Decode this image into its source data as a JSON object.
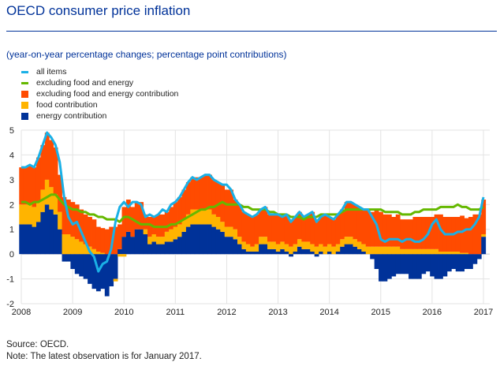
{
  "header": {
    "title": "OECD consumer price inflation",
    "subtitle": "(year-on-year percentage changes; percentage point contributions)"
  },
  "legend": [
    {
      "label": "all items",
      "type": "line",
      "color": "#1ab0e6"
    },
    {
      "label": "excluding food and energy",
      "type": "line",
      "color": "#65b800"
    },
    {
      "label": "excluding food and energy contribution",
      "type": "box",
      "color": "#ff4b00"
    },
    {
      "label": "food contribution",
      "type": "box",
      "color": "#ffb400"
    },
    {
      "label": "energy contribution",
      "type": "box",
      "color": "#003299"
    }
  ],
  "footer": {
    "source": "Source: OECD.",
    "note": "Note: The latest observation is for January 2017."
  },
  "chart_data": {
    "type": "bar",
    "title": "OECD consumer price inflation",
    "subtitle": "(year-on-year percentage changes; percentage point contributions)",
    "xlabel": "",
    "ylabel": "",
    "frequency": "monthly",
    "x_start": "2008-01",
    "x_end": "2017-01",
    "x_ticks": [
      "2008",
      "2009",
      "2010",
      "2011",
      "2012",
      "2013",
      "2014",
      "2015",
      "2016",
      "2017"
    ],
    "y_ticks": [
      -2,
      -1,
      0,
      1,
      2,
      3,
      4,
      5
    ],
    "ylim": [
      -2,
      5
    ],
    "grid": true,
    "legend_position": "top-left",
    "series": [
      {
        "name": "energy contribution",
        "type": "stacked-bar",
        "color": "#003299",
        "values": [
          1.2,
          1.2,
          1.2,
          1.1,
          1.3,
          1.7,
          2.0,
          1.8,
          1.6,
          1.0,
          -0.3,
          -0.3,
          -0.6,
          -0.8,
          -0.9,
          -1.0,
          -1.2,
          -1.4,
          -1.5,
          -1.4,
          -1.7,
          -1.3,
          -1.0,
          0.2,
          0.7,
          0.9,
          0.7,
          1.0,
          1.0,
          0.8,
          0.4,
          0.5,
          0.4,
          0.4,
          0.5,
          0.5,
          0.6,
          0.7,
          0.9,
          1.1,
          1.2,
          1.2,
          1.2,
          1.2,
          1.2,
          1.1,
          1.0,
          0.9,
          0.7,
          0.7,
          0.6,
          0.4,
          0.2,
          0.1,
          0.1,
          0.1,
          0.4,
          0.4,
          0.2,
          0.2,
          0.1,
          0.2,
          0.1,
          -0.1,
          0.1,
          0.3,
          0.2,
          0.2,
          0.1,
          -0.1,
          0.1,
          0.0,
          0.1,
          0.0,
          0.1,
          0.3,
          0.4,
          0.4,
          0.3,
          0.2,
          0.1,
          0.0,
          -0.2,
          -0.6,
          -1.1,
          -1.1,
          -1.0,
          -0.9,
          -0.8,
          -0.8,
          -0.8,
          -1.0,
          -1.0,
          -1.0,
          -0.8,
          -0.7,
          -0.9,
          -1.0,
          -1.0,
          -0.9,
          -0.7,
          -0.6,
          -0.7,
          -0.7,
          -0.6,
          -0.6,
          -0.4,
          -0.2,
          0.7
        ]
      },
      {
        "name": "food contribution",
        "type": "stacked-bar",
        "color": "#ffb400",
        "values": [
          0.8,
          0.8,
          0.8,
          0.8,
          0.8,
          0.9,
          1.0,
          0.9,
          0.8,
          0.7,
          0.8,
          0.8,
          0.7,
          0.6,
          0.5,
          0.4,
          0.3,
          0.2,
          0.1,
          0.05,
          0.0,
          0.0,
          -0.1,
          -0.1,
          -0.1,
          0.0,
          0.0,
          0.0,
          0.0,
          0.2,
          0.3,
          0.3,
          0.3,
          0.3,
          0.4,
          0.5,
          0.5,
          0.5,
          0.5,
          0.5,
          0.6,
          0.6,
          0.6,
          0.6,
          0.6,
          0.5,
          0.5,
          0.4,
          0.4,
          0.4,
          0.4,
          0.3,
          0.3,
          0.3,
          0.2,
          0.3,
          0.3,
          0.3,
          0.3,
          0.3,
          0.3,
          0.3,
          0.3,
          0.3,
          0.3,
          0.3,
          0.3,
          0.3,
          0.3,
          0.3,
          0.3,
          0.3,
          0.3,
          0.3,
          0.3,
          0.3,
          0.3,
          0.3,
          0.3,
          0.3,
          0.3,
          0.3,
          0.3,
          0.3,
          0.3,
          0.3,
          0.3,
          0.3,
          0.3,
          0.2,
          0.2,
          0.2,
          0.2,
          0.2,
          0.2,
          0.2,
          0.2,
          0.2,
          0.1,
          0.1,
          0.1,
          0.1,
          0.1,
          0.05,
          0.05,
          0.0,
          0.0,
          0.0,
          0.1
        ]
      },
      {
        "name": "excluding food and energy contribution",
        "type": "stacked-bar",
        "color": "#ff4b00",
        "values": [
          1.5,
          1.5,
          1.6,
          1.6,
          1.8,
          1.8,
          1.9,
          1.9,
          1.9,
          1.5,
          1.5,
          1.4,
          1.4,
          1.4,
          1.3,
          1.2,
          1.2,
          1.2,
          1.0,
          1.0,
          1.0,
          1.1,
          1.1,
          1.0,
          1.2,
          1.3,
          1.2,
          1.1,
          1.1,
          0.6,
          0.8,
          0.7,
          0.9,
          0.9,
          0.8,
          0.9,
          1.0,
          1.1,
          1.2,
          1.3,
          1.3,
          1.3,
          1.3,
          1.4,
          1.4,
          1.4,
          1.4,
          1.5,
          1.5,
          1.5,
          1.2,
          1.3,
          1.2,
          1.2,
          1.2,
          1.2,
          1.1,
          1.2,
          1.1,
          1.1,
          1.2,
          1.0,
          1.2,
          1.1,
          1.1,
          1.1,
          1.0,
          1.1,
          1.3,
          1.1,
          1.1,
          1.3,
          1.1,
          1.1,
          1.2,
          1.2,
          1.4,
          1.4,
          1.4,
          1.4,
          1.4,
          1.5,
          1.4,
          1.5,
          1.4,
          1.3,
          1.3,
          1.2,
          1.3,
          1.2,
          1.2,
          1.2,
          1.3,
          1.3,
          1.3,
          1.3,
          1.3,
          1.4,
          1.5,
          1.4,
          1.4,
          1.4,
          1.4,
          1.5,
          1.4,
          1.5,
          1.6,
          1.6,
          1.4
        ]
      },
      {
        "name": "all items",
        "type": "line",
        "color": "#1ab0e6",
        "values": [
          3.5,
          3.5,
          3.6,
          3.5,
          3.9,
          4.4,
          4.9,
          4.7,
          4.4,
          3.7,
          2.3,
          1.5,
          1.2,
          1.3,
          0.9,
          0.5,
          0.1,
          -0.1,
          -0.7,
          -0.4,
          -0.3,
          0.2,
          1.3,
          1.9,
          2.1,
          1.9,
          2.1,
          2.1,
          2.0,
          1.5,
          1.6,
          1.5,
          1.6,
          1.8,
          1.7,
          2.0,
          2.1,
          2.3,
          2.6,
          2.9,
          3.1,
          3.0,
          3.1,
          3.2,
          3.2,
          3.0,
          2.9,
          2.8,
          2.8,
          2.6,
          2.2,
          2.0,
          1.7,
          1.6,
          1.5,
          1.6,
          1.8,
          1.9,
          1.6,
          1.6,
          1.6,
          1.5,
          1.6,
          1.3,
          1.5,
          1.7,
          1.5,
          1.6,
          1.7,
          1.3,
          1.5,
          1.6,
          1.5,
          1.4,
          1.6,
          1.8,
          2.1,
          2.1,
          2.0,
          1.9,
          1.8,
          1.8,
          1.5,
          1.2,
          0.6,
          0.5,
          0.6,
          0.6,
          0.6,
          0.5,
          0.6,
          0.6,
          0.5,
          0.5,
          0.6,
          0.8,
          1.2,
          1.4,
          1.0,
          0.8,
          0.8,
          0.8,
          0.9,
          0.9,
          1.0,
          1.0,
          1.2,
          1.5,
          2.3
        ]
      },
      {
        "name": "excluding food and energy",
        "type": "line",
        "color": "#65b800",
        "values": [
          2.1,
          2.1,
          2.0,
          2.1,
          2.1,
          2.2,
          2.3,
          2.4,
          2.4,
          2.2,
          2.0,
          1.9,
          1.8,
          1.8,
          1.7,
          1.7,
          1.6,
          1.6,
          1.5,
          1.5,
          1.4,
          1.4,
          1.4,
          1.3,
          1.5,
          1.5,
          1.4,
          1.3,
          1.2,
          1.2,
          1.2,
          1.1,
          1.1,
          1.1,
          1.1,
          1.2,
          1.2,
          1.3,
          1.4,
          1.5,
          1.6,
          1.7,
          1.8,
          1.8,
          1.9,
          1.9,
          2.0,
          2.1,
          2.0,
          2.0,
          2.0,
          2.0,
          1.9,
          1.9,
          1.8,
          1.8,
          1.8,
          1.8,
          1.7,
          1.7,
          1.6,
          1.6,
          1.6,
          1.5,
          1.5,
          1.5,
          1.4,
          1.5,
          1.5,
          1.5,
          1.6,
          1.6,
          1.6,
          1.6,
          1.6,
          1.7,
          1.8,
          1.8,
          1.8,
          1.8,
          1.8,
          1.8,
          1.8,
          1.8,
          1.8,
          1.7,
          1.7,
          1.7,
          1.7,
          1.6,
          1.6,
          1.6,
          1.7,
          1.7,
          1.8,
          1.8,
          1.8,
          1.8,
          1.9,
          1.9,
          1.9,
          1.9,
          2.0,
          1.9,
          1.9,
          1.8,
          1.8,
          1.8,
          1.9
        ]
      }
    ]
  }
}
